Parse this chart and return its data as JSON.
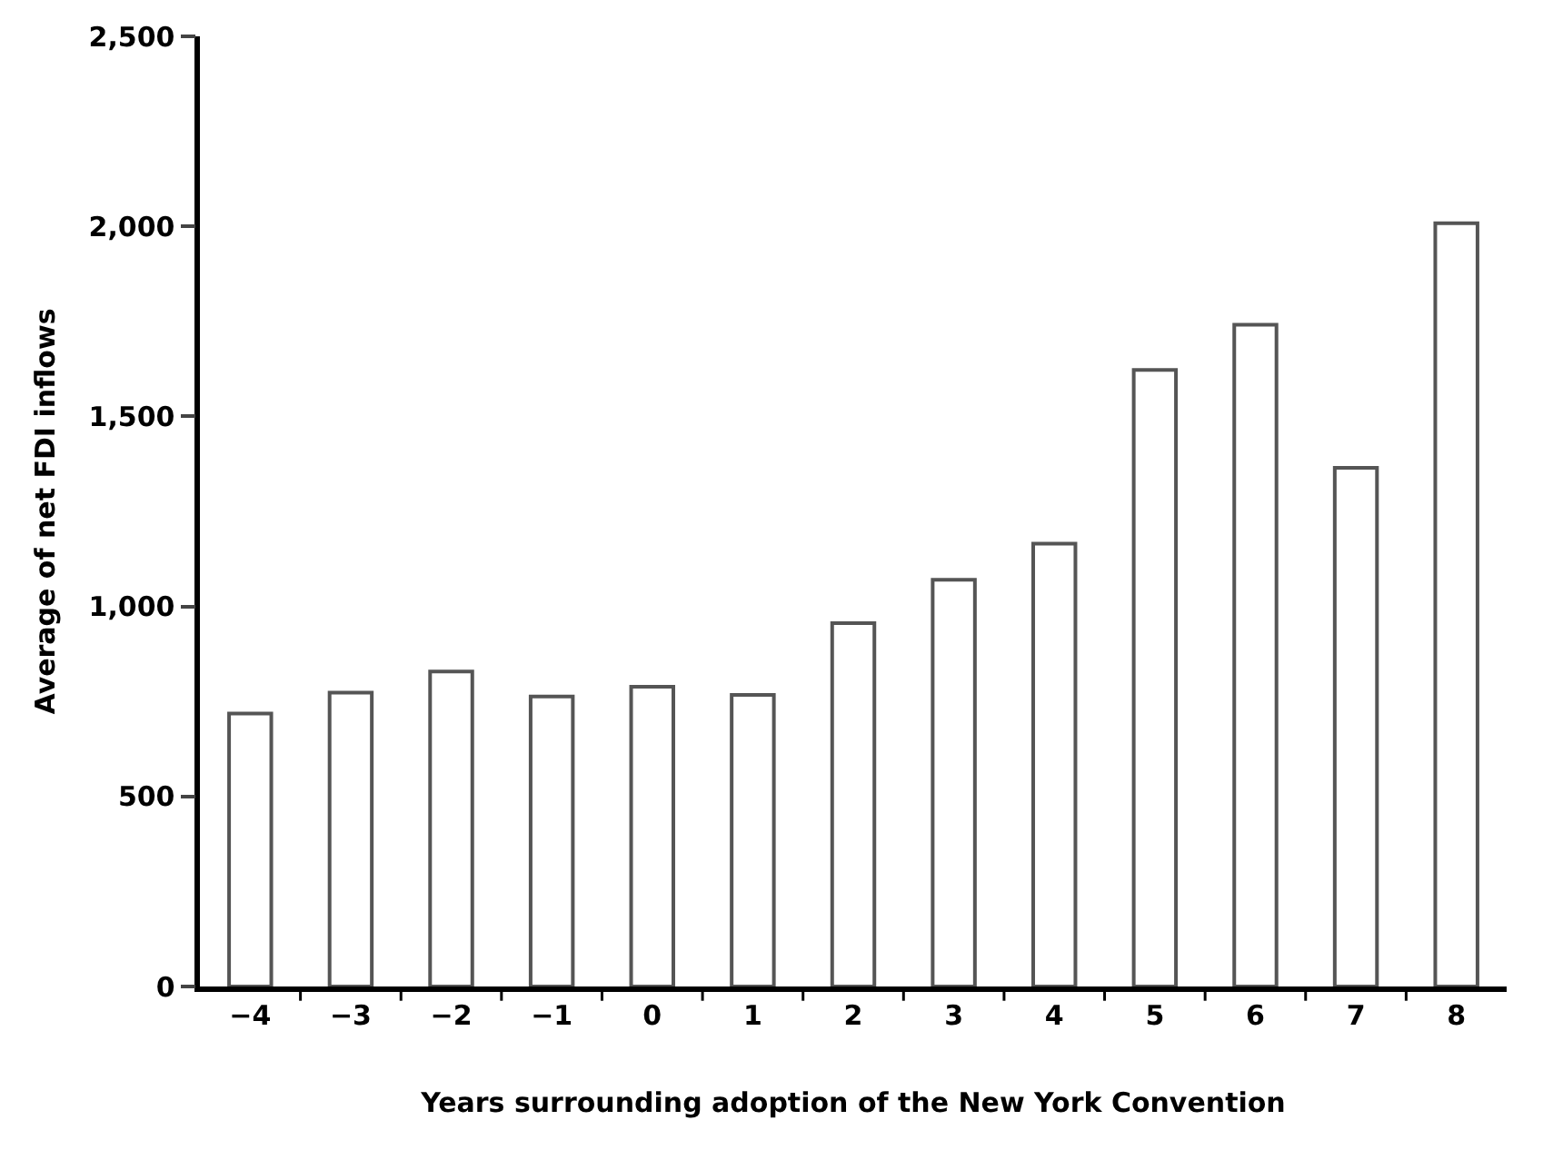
{
  "chart_data": {
    "type": "bar",
    "xlabel": "Years surrounding adoption of the New York Convention",
    "ylabel": "Average of net FDI inflows",
    "categories": [
      "−4",
      "−3",
      "−2",
      "−1",
      "0",
      "1",
      "2",
      "3",
      "4",
      "5",
      "6",
      "7",
      "8"
    ],
    "series": [
      {
        "color": "#555555",
        "values": [
          718,
          773,
          829,
          763,
          789,
          767,
          956,
          1070,
          1165,
          1622,
          1741,
          1365,
          2008
        ]
      }
    ],
    "ylim": [
      0,
      2500
    ],
    "yticks": [
      {
        "value": 0,
        "label": "0"
      },
      {
        "value": 500,
        "label": "500"
      },
      {
        "value": 1000,
        "label": "1,000"
      },
      {
        "value": 1500,
        "label": "1,500"
      },
      {
        "value": 2000,
        "label": "2,000"
      },
      {
        "value": 2500,
        "label": "2,500"
      }
    ]
  }
}
